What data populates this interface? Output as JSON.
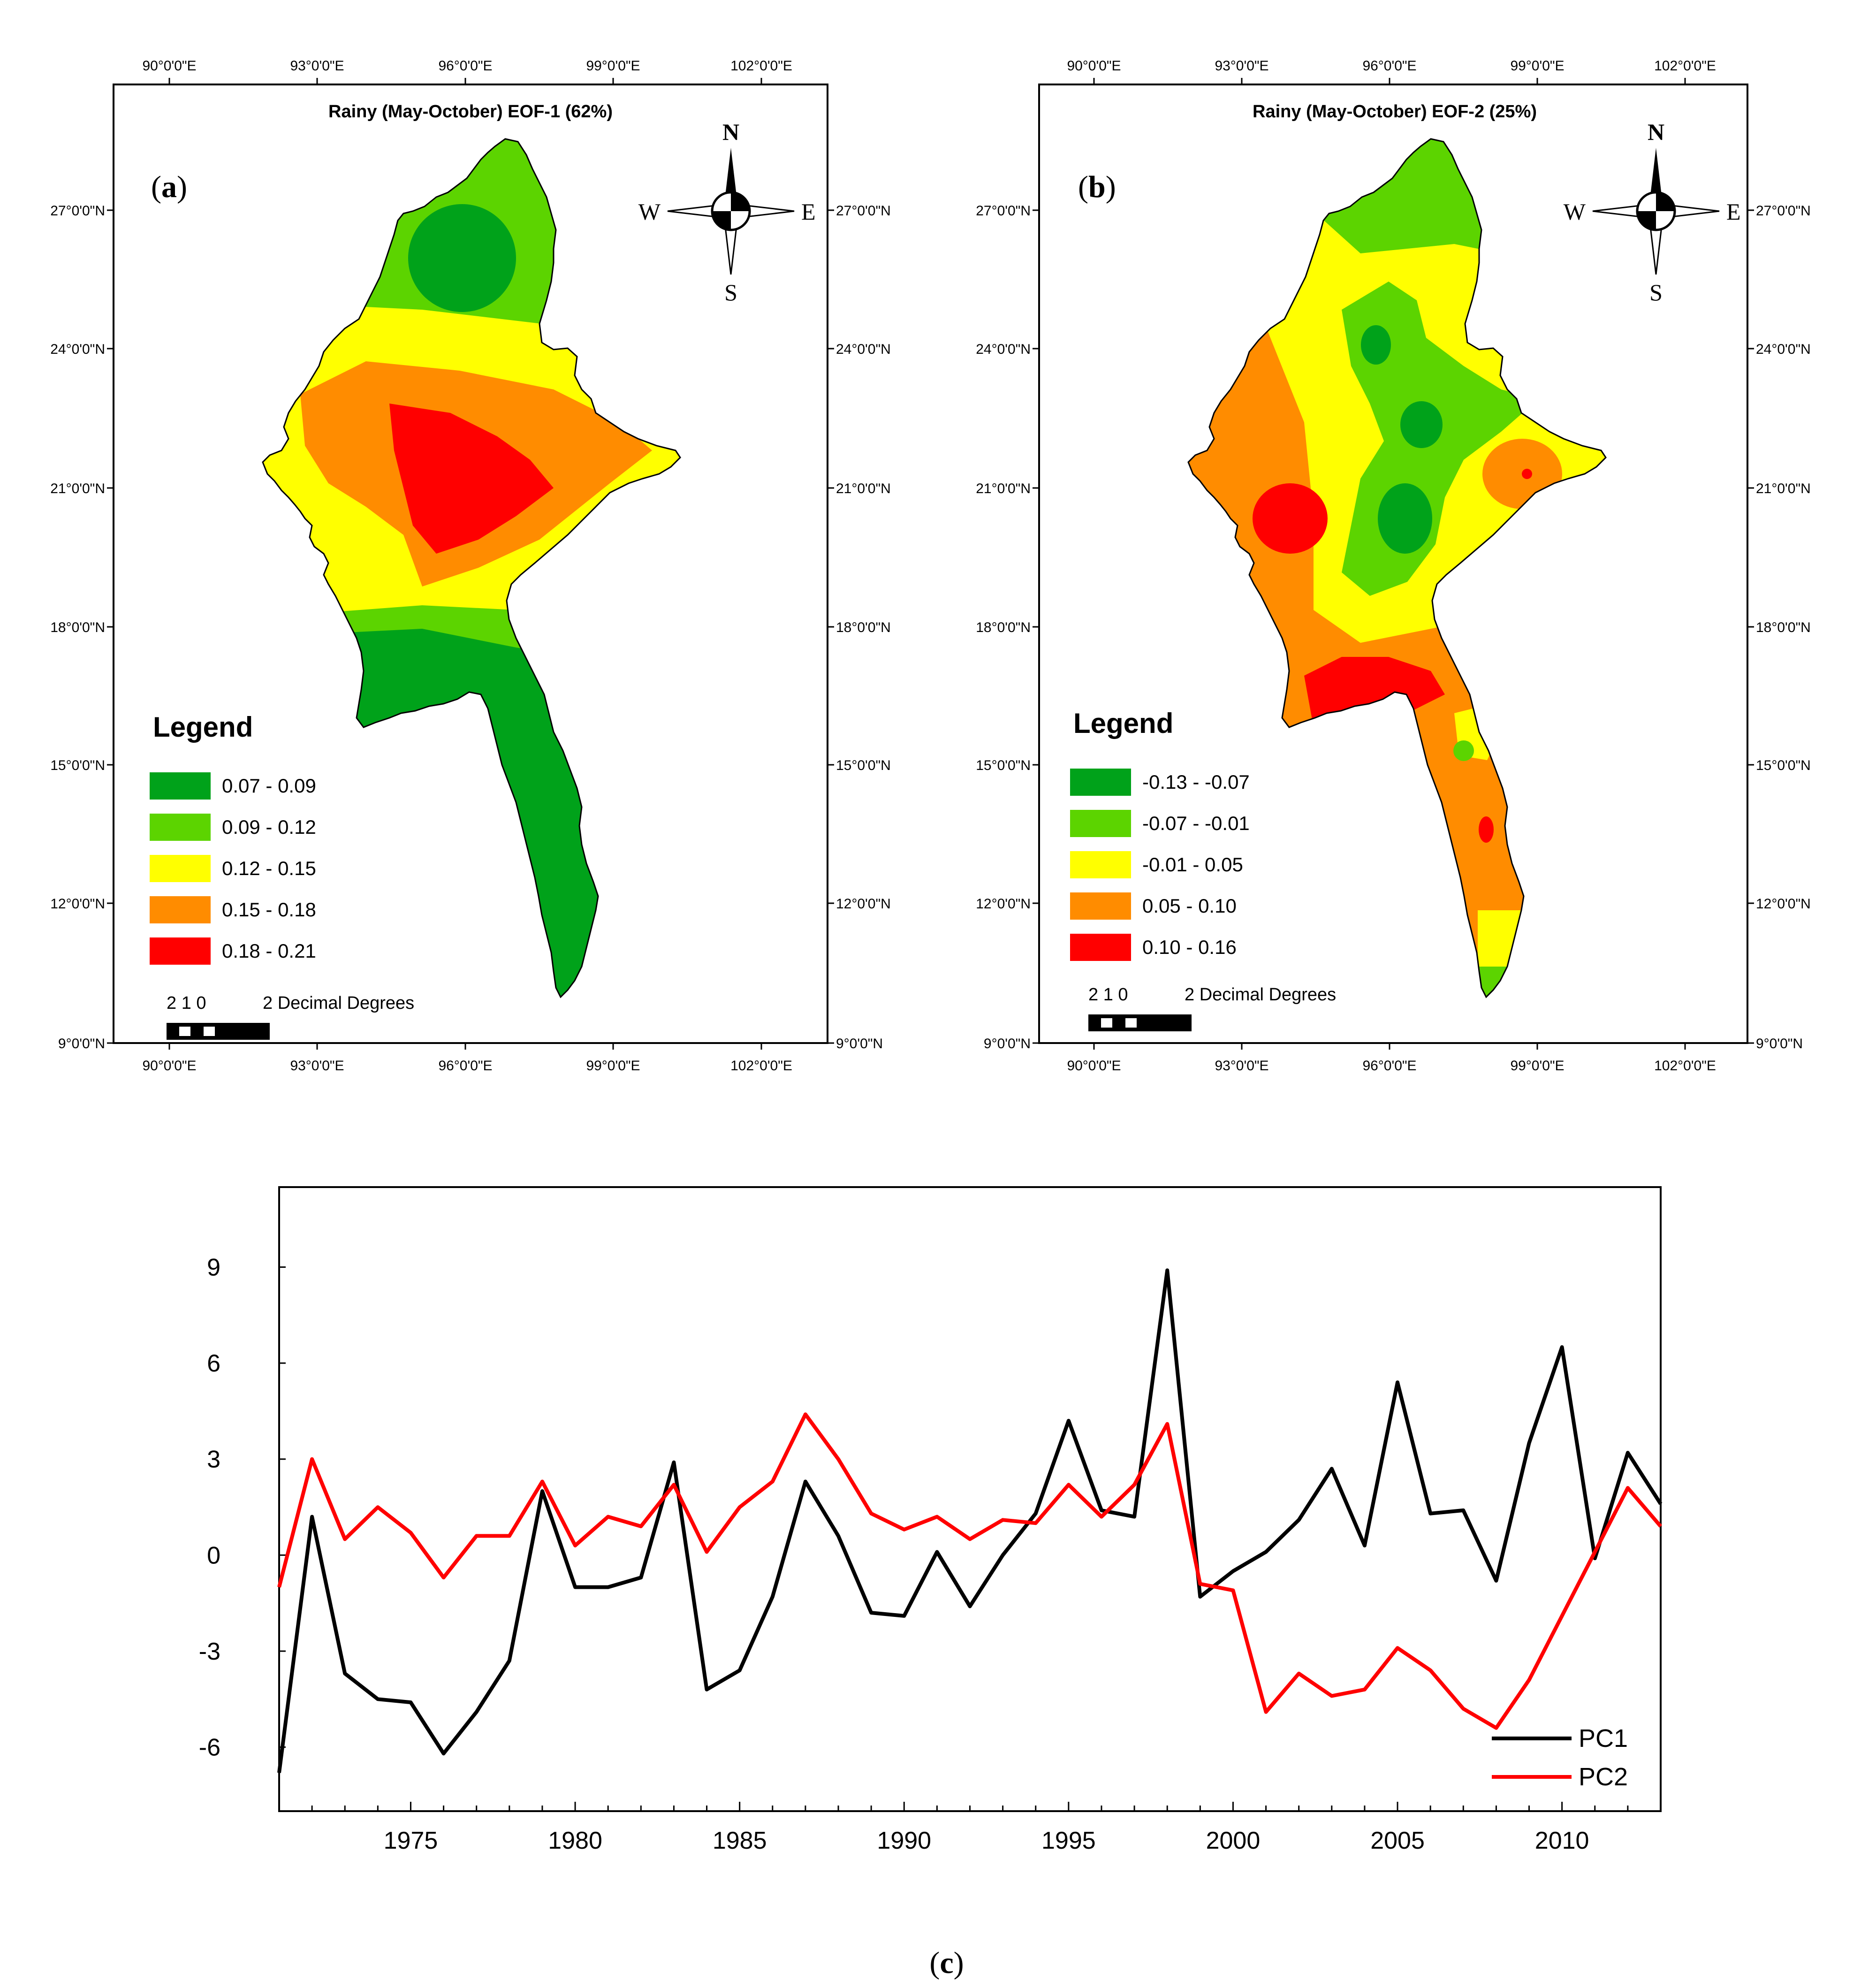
{
  "figure": {
    "panels": [
      {
        "id": "a",
        "letter": "a",
        "title": "Rainy (May-October) EOF-1 (62%)",
        "top_ticks": [
          "90°0'0\"E",
          "93°0'0\"E",
          "96°0'0\"E",
          "99°0'0\"E",
          "102°0'0\"E"
        ],
        "bottom_ticks": [
          "90°0'0\"E",
          "93°0'0\"E",
          "96°0'0\"E",
          "99°0'0\"E",
          "102°0'0\"E"
        ],
        "left_ticks": [
          "27°0'0\"N",
          "24°0'0\"N",
          "21°0'0\"N",
          "18°0'0\"N",
          "15°0'0\"N",
          "12°0'0\"N",
          "9°0'0\"N"
        ],
        "right_ticks": [
          "27°0'0\"N",
          "24°0'0\"N",
          "21°0'0\"N",
          "18°0'0\"N",
          "15°0'0\"N",
          "12°0'0\"N",
          "9°0'0\"N"
        ],
        "compass": {
          "n": "N",
          "s": "S",
          "e": "E",
          "w": "W"
        },
        "legend": {
          "title": "Legend",
          "items": [
            {
              "label": "0.07 - 0.09",
              "color": "#00a21a"
            },
            {
              "label": "0.09 - 0.12",
              "color": "#5cd400"
            },
            {
              "label": "0.12 - 0.15",
              "color": "#ffff00"
            },
            {
              "label": "0.15 - 0.18",
              "color": "#ff8c00"
            },
            {
              "label": "0.18 - 0.21",
              "color": "#ff0000"
            }
          ]
        },
        "scalebar": {
          "numbers": "2  1  0",
          "unit_label": "2 Decimal Degrees"
        }
      },
      {
        "id": "b",
        "letter": "b",
        "title": "Rainy (May-October) EOF-2 (25%)",
        "top_ticks": [
          "90°0'0\"E",
          "93°0'0\"E",
          "96°0'0\"E",
          "99°0'0\"E",
          "102°0'0\"E"
        ],
        "bottom_ticks": [
          "90°0'0\"E",
          "93°0'0\"E",
          "96°0'0\"E",
          "99°0'0\"E",
          "102°0'0\"E"
        ],
        "left_ticks": [
          "27°0'0\"N",
          "24°0'0\"N",
          "21°0'0\"N",
          "18°0'0\"N",
          "15°0'0\"N",
          "12°0'0\"N",
          "9°0'0\"N"
        ],
        "right_ticks": [
          "27°0'0\"N",
          "24°0'0\"N",
          "21°0'0\"N",
          "18°0'0\"N",
          "15°0'0\"N",
          "12°0'0\"N",
          "9°0'0\"N"
        ],
        "compass": {
          "n": "N",
          "s": "S",
          "e": "E",
          "w": "W"
        },
        "legend": {
          "title": "Legend",
          "items": [
            {
              "label": "-0.13 - -0.07",
              "color": "#00a21a"
            },
            {
              "label": "-0.07 - -0.01",
              "color": "#5cd400"
            },
            {
              "label": "-0.01 - 0.05",
              "color": "#ffff00"
            },
            {
              "label": "0.05 - 0.10",
              "color": "#ff8c00"
            },
            {
              "label": "0.10 - 0.16",
              "color": "#ff0000"
            }
          ]
        },
        "scalebar": {
          "numbers": "2  1  0",
          "unit_label": "2 Decimal Degrees"
        }
      }
    ],
    "caption_c": "c"
  },
  "chart_data": {
    "type": "line",
    "title": "",
    "xlabel": "",
    "ylabel": "",
    "xlim": [
      1971,
      2013
    ],
    "ylim": [
      -8,
      11.5
    ],
    "x_ticks": [
      1975,
      1980,
      1985,
      1990,
      1995,
      2000,
      2005,
      2010
    ],
    "y_ticks": [
      9,
      6,
      3,
      0,
      -3,
      -6
    ],
    "x_tick_labels": [
      "1975",
      "1980",
      "1985",
      "1990",
      "1995",
      "2000",
      "2005",
      "2010"
    ],
    "y_tick_labels": [
      "9",
      "6",
      "3",
      "0",
      "-3",
      "-6"
    ],
    "x": [
      1971,
      1972,
      1973,
      1974,
      1975,
      1976,
      1977,
      1978,
      1979,
      1980,
      1981,
      1982,
      1983,
      1984,
      1985,
      1986,
      1987,
      1988,
      1989,
      1990,
      1991,
      1992,
      1993,
      1994,
      1995,
      1996,
      1997,
      1998,
      1999,
      2000,
      2001,
      2002,
      2003,
      2004,
      2005,
      2006,
      2007,
      2008,
      2009,
      2010,
      2011,
      2012,
      2013
    ],
    "series": [
      {
        "name": "PC1",
        "color": "#000000",
        "values": [
          -6.8,
          1.2,
          -3.7,
          -4.5,
          -4.6,
          -6.2,
          -4.9,
          -3.3,
          2.0,
          -1.0,
          -1.0,
          -0.7,
          2.9,
          -4.2,
          -3.6,
          -1.3,
          2.3,
          0.6,
          -1.8,
          -1.9,
          0.1,
          -1.6,
          0.0,
          1.3,
          4.2,
          1.4,
          1.2,
          8.9,
          -1.3,
          -0.5,
          0.1,
          1.1,
          2.7,
          0.3,
          5.4,
          1.3,
          1.4,
          -0.8,
          3.5,
          6.5,
          -0.1,
          3.2,
          1.6
        ]
      },
      {
        "name": "PC2",
        "color": "#ff0000",
        "values": [
          -1.0,
          3.0,
          0.5,
          1.5,
          0.7,
          -0.7,
          0.6,
          0.6,
          2.3,
          0.3,
          1.2,
          0.9,
          2.2,
          0.1,
          1.5,
          2.3,
          4.4,
          3.0,
          1.3,
          0.8,
          1.2,
          0.5,
          1.1,
          1.0,
          2.2,
          1.2,
          2.2,
          4.1,
          -0.9,
          -1.1,
          -4.9,
          -3.7,
          -4.4,
          -4.2,
          -2.9,
          -3.6,
          -4.8,
          -5.4,
          -3.9,
          -1.9,
          0.1,
          2.1,
          0.9
        ]
      }
    ],
    "legend": [
      "PC1",
      "PC2"
    ],
    "legend_position": "bottom-right"
  }
}
